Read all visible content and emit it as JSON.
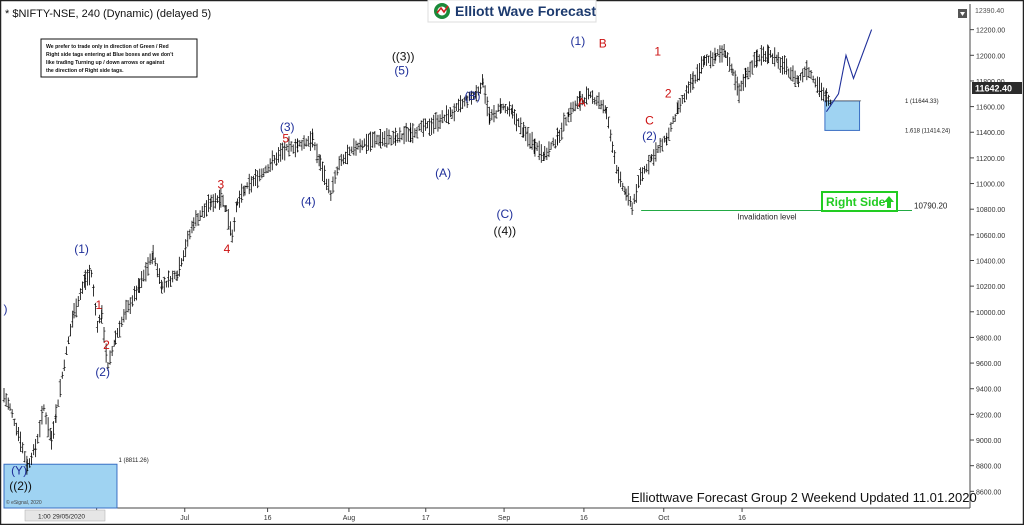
{
  "header": {
    "symbol_title": "* $NIFTY-NSE, 240 (Dynamic) (delayed 5)",
    "logo_text": "Elliott Wave Forecast"
  },
  "notice_lines": [
    "We prefer to trade only in direction of Green / Red",
    "Right side tags entering at Blue boxes and we don't",
    "like trading Turning up / down arrows or against",
    "the direction of Right side tags."
  ],
  "footer": {
    "caption": "Elliottwave Forecast Group 2 Weekend Updated 11.01.2020",
    "esignal": "© eSignal, 2020",
    "cursor_date": "1:00 29/05/2020"
  },
  "colors": {
    "bar": "#000000",
    "wave_blue": "#1f2f9a",
    "wave_red": "#cc1111",
    "invalidation_line": "#22aa44",
    "right_side_tag": "#22cc22",
    "blue_box_fill": "#9fd3f2",
    "blue_box_stroke": "#3a6fc4",
    "price_tag_bg": "#2b2b2b"
  },
  "chart_data": {
    "type": "bar",
    "title": "$NIFTY-NSE, 240 (Dynamic) (delayed 5)",
    "ylim": [
      8470,
      12400
    ],
    "y_ticks": [
      8600,
      8800,
      9000,
      9200,
      9400,
      9600,
      9800,
      10000,
      10200,
      10400,
      10600,
      10800,
      11000,
      11200,
      11400,
      11600,
      11800,
      12000,
      12200
    ],
    "x_ticks": [
      {
        "label": "16",
        "t": 12.3
      },
      {
        "label": "Jul",
        "t": 24
      },
      {
        "label": "16",
        "t": 35
      },
      {
        "label": "Aug",
        "t": 45.8
      },
      {
        "label": "17",
        "t": 56
      },
      {
        "label": "Sep",
        "t": 66.4
      },
      {
        "label": "16",
        "t": 77
      },
      {
        "label": "Oct",
        "t": 87.6
      },
      {
        "label": "16",
        "t": 98
      }
    ],
    "x_range": [
      0,
      128
    ],
    "path_points": [
      [
        0,
        9350
      ],
      [
        0.8,
        9250
      ],
      [
        2.2,
        9000
      ],
      [
        3.1,
        8800
      ],
      [
        4.2,
        8940
      ],
      [
        5.3,
        9250
      ],
      [
        6.3,
        9000
      ],
      [
        6.9,
        9200
      ],
      [
        8.0,
        9600
      ],
      [
        9.3,
        10000
      ],
      [
        10.8,
        10250
      ],
      [
        11.6,
        10300
      ],
      [
        12.4,
        9900
      ],
      [
        13.0,
        9980
      ],
      [
        13.8,
        9560
      ],
      [
        14.8,
        9800
      ],
      [
        16.2,
        10000
      ],
      [
        18.0,
        10200
      ],
      [
        19.8,
        10450
      ],
      [
        21.0,
        10200
      ],
      [
        23.0,
        10300
      ],
      [
        25.2,
        10700
      ],
      [
        27.5,
        10850
      ],
      [
        28.8,
        10900
      ],
      [
        29.5,
        10800
      ],
      [
        30.3,
        10600
      ],
      [
        31.0,
        10850
      ],
      [
        32.0,
        10950
      ],
      [
        34.5,
        11100
      ],
      [
        37.0,
        11250
      ],
      [
        39.0,
        11300
      ],
      [
        41.0,
        11350
      ],
      [
        42.0,
        11150
      ],
      [
        43.4,
        10920
      ],
      [
        44.5,
        11150
      ],
      [
        47.0,
        11300
      ],
      [
        50.0,
        11350
      ],
      [
        52.0,
        11350
      ],
      [
        54.0,
        11400
      ],
      [
        56.5,
        11450
      ],
      [
        59.5,
        11550
      ],
      [
        61.5,
        11650
      ],
      [
        62.7,
        11700
      ],
      [
        63.6,
        11800
      ],
      [
        64.5,
        11500
      ],
      [
        66.0,
        11600
      ],
      [
        67.5,
        11550
      ],
      [
        69.0,
        11400
      ],
      [
        70.5,
        11300
      ],
      [
        71.8,
        11220
      ],
      [
        73.5,
        11350
      ],
      [
        75.0,
        11550
      ],
      [
        76.5,
        11650
      ],
      [
        77.6,
        11680
      ],
      [
        79.0,
        11650
      ],
      [
        80.0,
        11550
      ],
      [
        80.8,
        11300
      ],
      [
        81.6,
        11050
      ],
      [
        82.6,
        10920
      ],
      [
        83.4,
        10820
      ],
      [
        84.5,
        11050
      ],
      [
        86.0,
        11200
      ],
      [
        88.0,
        11350
      ],
      [
        89.5,
        11580
      ],
      [
        91.5,
        11800
      ],
      [
        93.0,
        11950
      ],
      [
        94.5,
        12000
      ],
      [
        95.8,
        12025
      ],
      [
        96.8,
        11850
      ],
      [
        97.6,
        11700
      ],
      [
        98.5,
        11850
      ],
      [
        100.0,
        11980
      ],
      [
        101.5,
        12020
      ],
      [
        102.8,
        11950
      ],
      [
        104.2,
        11880
      ],
      [
        105.5,
        11800
      ],
      [
        106.6,
        11900
      ],
      [
        108.0,
        11780
      ],
      [
        109.2,
        11660
      ],
      [
        110.0,
        11600
      ]
    ],
    "projection_points": [
      [
        109.2,
        11560
      ],
      [
        110.8,
        11700
      ],
      [
        111.8,
        12000
      ],
      [
        112.8,
        11820
      ],
      [
        115.2,
        12200
      ]
    ],
    "wave_labels": [
      {
        "text": ")",
        "t": 0.2,
        "price": 9990,
        "color": "blue"
      },
      {
        "text": "(Y)",
        "t": 2.0,
        "price": 8730,
        "color": "blue"
      },
      {
        "text": "((2))",
        "t": 2.2,
        "price": 8610,
        "color": "black"
      },
      {
        "text": "(1)",
        "t": 10.3,
        "price": 10460,
        "color": "blue"
      },
      {
        "text": "1",
        "t": 12.6,
        "price": 10020,
        "color": "red"
      },
      {
        "text": "2",
        "t": 13.6,
        "price": 9710,
        "color": "red"
      },
      {
        "text": "(2)",
        "t": 13.1,
        "price": 9500,
        "color": "blue"
      },
      {
        "text": "3",
        "t": 28.8,
        "price": 10960,
        "color": "red"
      },
      {
        "text": "4",
        "t": 29.6,
        "price": 10460,
        "color": "red"
      },
      {
        "text": "(3)",
        "t": 37.6,
        "price": 11410,
        "color": "blue"
      },
      {
        "text": "5",
        "t": 37.4,
        "price": 11320,
        "color": "red"
      },
      {
        "text": "(4)",
        "t": 40.4,
        "price": 10830,
        "color": "blue"
      },
      {
        "text": "((3))",
        "t": 53.0,
        "price": 11960,
        "color": "black"
      },
      {
        "text": "(5)",
        "t": 52.8,
        "price": 11850,
        "color": "blue"
      },
      {
        "text": "(A)",
        "t": 58.3,
        "price": 11050,
        "color": "blue"
      },
      {
        "text": "(B)",
        "t": 62.2,
        "price": 11650,
        "color": "blue"
      },
      {
        "text": "(C)",
        "t": 66.5,
        "price": 10730,
        "color": "blue"
      },
      {
        "text": "((4))",
        "t": 66.5,
        "price": 10600,
        "color": "black"
      },
      {
        "text": "(1)",
        "t": 76.2,
        "price": 12080,
        "color": "blue"
      },
      {
        "text": "A",
        "t": 76.7,
        "price": 11600,
        "color": "red"
      },
      {
        "text": "B",
        "t": 79.5,
        "price": 12060,
        "color": "red"
      },
      {
        "text": "1",
        "t": 86.8,
        "price": 12000,
        "color": "red"
      },
      {
        "text": "2",
        "t": 88.2,
        "price": 11670,
        "color": "red"
      },
      {
        "text": "C",
        "t": 85.7,
        "price": 11460,
        "color": "red"
      },
      {
        "text": "(2)",
        "t": 85.7,
        "price": 11340,
        "color": "blue"
      }
    ],
    "annotations": [
      {
        "text": "1 (8811.26)",
        "price": 8811.26
      },
      {
        "text": "1 (11644.33)",
        "price": 11644.33
      },
      {
        "text": "1.618 (11414.24)",
        "price": 11414.24
      },
      {
        "text": "Invalidation level",
        "price": 10790.2
      },
      {
        "text": "10790.20",
        "price": 10790.2
      },
      {
        "text": "Right Side",
        "price": 10690
      }
    ],
    "blue_boxes": [
      {
        "from_price": 8811.26,
        "to_price": 8470
      },
      {
        "from_price": 11644.33,
        "to_price": 11414.24
      }
    ],
    "invalidation_level": 10790.2,
    "last_price": "11642.40",
    "top_price": "12390.40"
  }
}
